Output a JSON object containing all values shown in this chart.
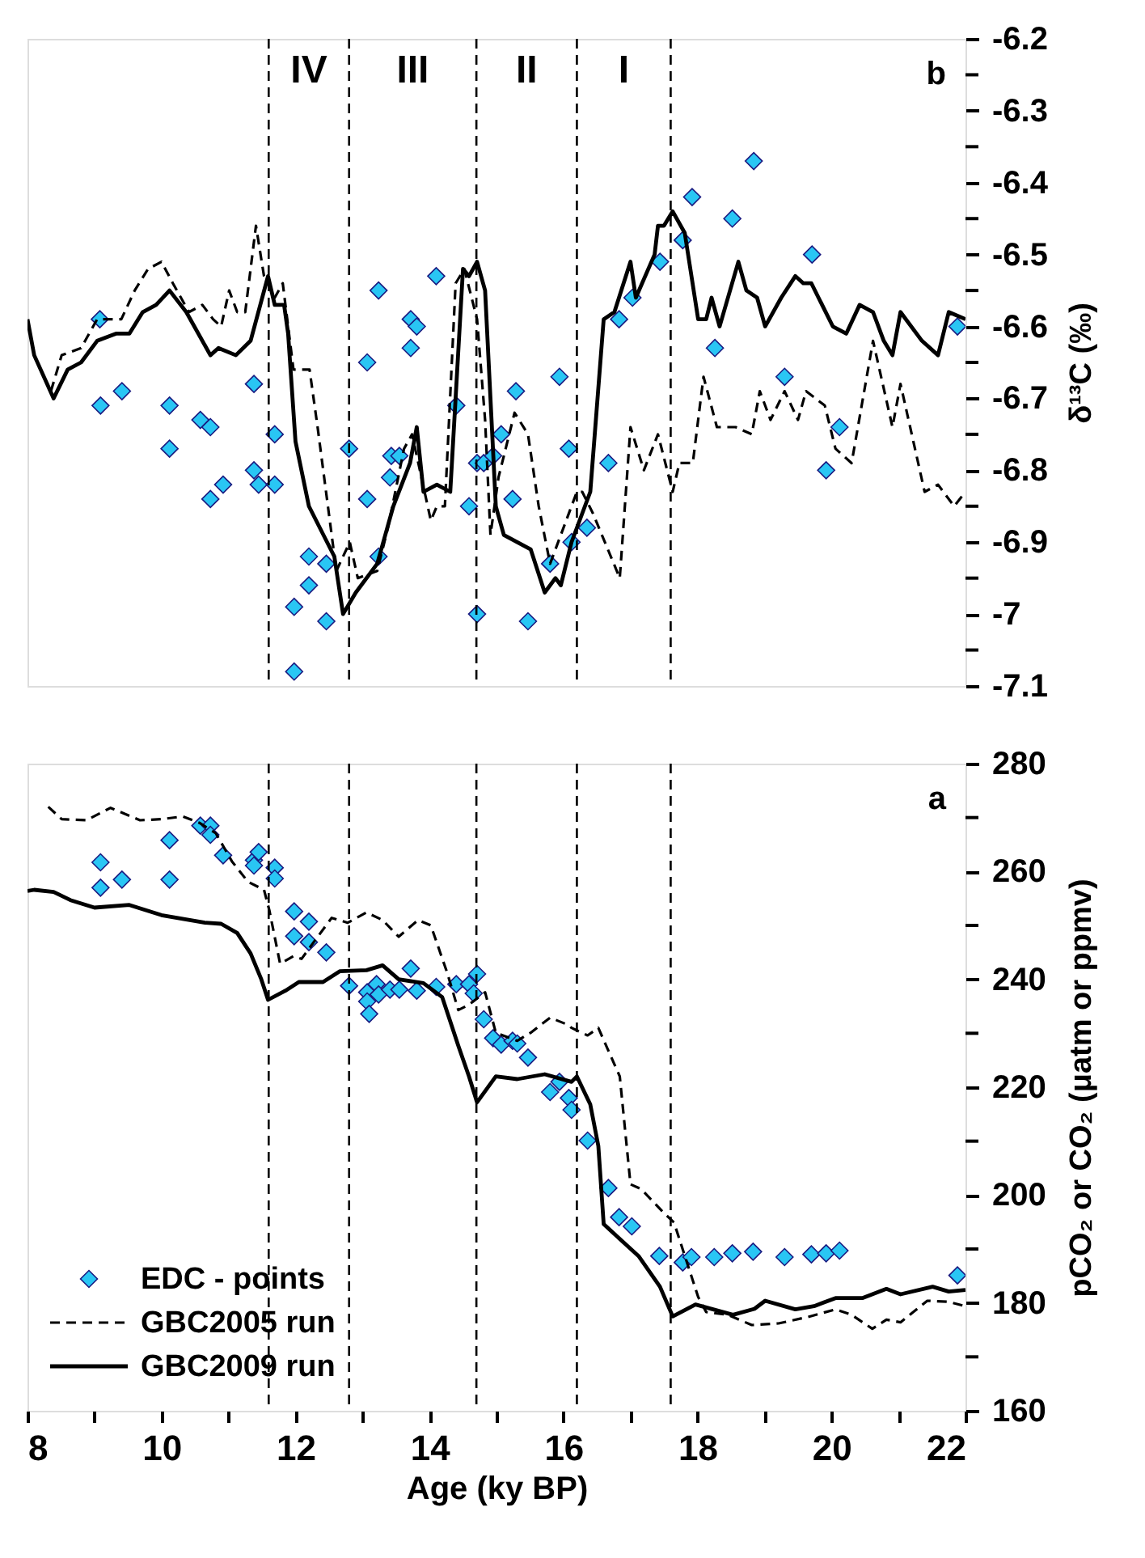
{
  "chart_data": [
    {
      "type": "line",
      "ylabel": "δ¹³C (‰)",
      "xlim": [
        8,
        22
      ],
      "ylim": [
        -7.1,
        -6.2
      ],
      "yticks": [
        -6.2,
        {
          "value": -6.25,
          "label": null
        },
        -6.3,
        {
          "value": -6.35,
          "label": null
        },
        -6.4,
        {
          "value": -6.45,
          "label": null
        },
        -6.5,
        {
          "value": -6.55,
          "label": null
        },
        -6.6,
        {
          "value": -6.65,
          "label": null
        },
        -6.7,
        {
          "value": -6.75,
          "label": null
        },
        -6.8,
        {
          "value": -6.85,
          "label": null
        },
        -6.9,
        {
          "value": -6.95,
          "label": null
        },
        -7,
        {
          "value": -7.05,
          "label": null
        },
        -7.1
      ],
      "tick_labels": "y",
      "grid": false,
      "legend": false,
      "annotations": [
        "b",
        "IV",
        "III",
        "II",
        "I"
      ],
      "ref_lines": [
        {
          "axis": "x",
          "value": 11.6,
          "color": "#000000",
          "line_style": "dashed"
        },
        {
          "axis": "x",
          "value": 12.8,
          "color": "#000000",
          "line_style": "dashed"
        },
        {
          "axis": "x",
          "value": 14.7,
          "color": "#000000",
          "line_style": "dashed"
        },
        {
          "axis": "x",
          "value": 16.2,
          "color": "#000000",
          "line_style": "dashed"
        },
        {
          "axis": "x",
          "value": 17.6,
          "color": "#000000",
          "line_style": "dashed"
        }
      ],
      "series": [
        {
          "type": "scatter",
          "marker": "diamond",
          "color": "#29c6f4",
          "x": [
            9.08,
            9.09,
            9.41,
            10.12,
            10.12,
            10.58,
            10.73,
            10.73,
            10.92,
            11.38,
            11.38,
            11.45,
            11.69,
            11.69,
            11.98,
            11.98,
            12.2,
            12.2,
            12.46,
            12.46,
            12.8,
            13.07,
            13.07,
            13.24,
            13.24,
            13.41,
            13.43,
            13.55,
            13.72,
            13.72,
            13.81,
            14.1,
            14.4,
            14.59,
            14.71,
            14.71,
            14.81,
            14.95,
            15.07,
            15.24,
            15.29,
            15.47,
            15.8,
            15.94,
            16.08,
            16.12,
            16.35,
            16.67,
            16.83,
            17.03,
            17.44,
            17.78,
            17.92,
            18.26,
            18.52,
            18.84,
            19.3,
            19.71,
            19.92,
            20.12,
            21.88
          ],
          "values": [
            -6.59,
            -6.71,
            -6.69,
            -6.71,
            -6.77,
            -6.73,
            -6.74,
            -6.84,
            -6.82,
            -6.68,
            -6.8,
            -6.82,
            -6.75,
            -6.82,
            -6.99,
            -7.08,
            -6.92,
            -6.96,
            -6.93,
            -7.01,
            -6.77,
            -6.65,
            -6.84,
            -6.55,
            -6.92,
            -6.81,
            -6.78,
            -6.78,
            -6.59,
            -6.63,
            -6.6,
            -6.53,
            -6.71,
            -6.85,
            -6.79,
            -7.0,
            -6.79,
            -6.78,
            -6.75,
            -6.84,
            -6.69,
            -7.01,
            -6.93,
            -6.67,
            -6.77,
            -6.9,
            -6.88,
            -6.79,
            -6.59,
            -6.56,
            -6.51,
            -6.48,
            -6.42,
            -6.63,
            -6.45,
            -6.37,
            -6.67,
            -6.5,
            -6.8,
            -6.74,
            -6.6
          ]
        },
        {
          "color": "#000000",
          "line_style": "dashed",
          "x": [
            8.35,
            8.51,
            8.8,
            9.04,
            9.4,
            9.6,
            9.8,
            10.0,
            10.17,
            10.41,
            10.61,
            10.77,
            10.89,
            11.01,
            11.13,
            11.25,
            11.41,
            11.53,
            11.69,
            11.81,
            11.97,
            12.21,
            12.33,
            12.61,
            12.81,
            12.93,
            13.22,
            13.38,
            13.62,
            13.74,
            14.02,
            14.11,
            14.23,
            14.39,
            14.52,
            14.71,
            14.83,
            14.91,
            15.03,
            15.27,
            15.47,
            15.63,
            15.8,
            16.2,
            16.28,
            16.44,
            16.84,
            17.0,
            17.2,
            17.41,
            17.63,
            17.73,
            17.93,
            18.09,
            18.29,
            18.57,
            18.81,
            18.93,
            19.09,
            19.3,
            19.5,
            19.62,
            19.9,
            20.06,
            20.3,
            20.62,
            20.91,
            21.03,
            21.39,
            21.59,
            21.83,
            22.0
          ],
          "values": [
            -6.69,
            -6.64,
            -6.63,
            -6.59,
            -6.59,
            -6.55,
            -6.52,
            -6.51,
            -6.54,
            -6.58,
            -6.57,
            -6.59,
            -6.6,
            -6.55,
            -6.58,
            -6.58,
            -6.46,
            -6.53,
            -6.56,
            -6.54,
            -6.66,
            -6.66,
            -6.74,
            -6.94,
            -6.9,
            -6.95,
            -6.94,
            -6.88,
            -6.77,
            -6.75,
            -6.87,
            -6.85,
            -6.85,
            -6.54,
            -6.52,
            -6.59,
            -6.73,
            -6.89,
            -6.81,
            -6.72,
            -6.75,
            -6.85,
            -6.93,
            -6.83,
            -6.83,
            -6.86,
            -6.95,
            -6.74,
            -6.8,
            -6.75,
            -6.83,
            -6.79,
            -6.79,
            -6.67,
            -6.74,
            -6.74,
            -6.75,
            -6.69,
            -6.73,
            -6.69,
            -6.73,
            -6.69,
            -6.71,
            -6.77,
            -6.79,
            -6.62,
            -6.74,
            -6.68,
            -6.83,
            -6.82,
            -6.85,
            -6.83
          ]
        },
        {
          "color": "#000000",
          "line_style": "solid",
          "x": [
            8.0,
            8.1,
            8.39,
            8.6,
            8.8,
            9.04,
            9.32,
            9.52,
            9.72,
            9.92,
            10.12,
            10.37,
            10.73,
            10.85,
            11.11,
            11.33,
            11.59,
            11.69,
            11.83,
            11.89,
            12.0,
            12.2,
            12.58,
            12.71,
            12.9,
            13.22,
            13.46,
            13.71,
            13.81,
            13.91,
            14.11,
            14.31,
            14.5,
            14.59,
            14.71,
            14.83,
            14.99,
            15.11,
            15.51,
            15.72,
            15.88,
            15.96,
            16.12,
            16.4,
            16.6,
            16.76,
            17.0,
            17.08,
            17.36,
            17.41,
            17.5,
            17.63,
            17.81,
            18.01,
            18.13,
            18.21,
            18.33,
            18.61,
            18.73,
            18.89,
            19.01,
            19.25,
            19.46,
            19.58,
            19.7,
            20.02,
            20.22,
            20.42,
            20.62,
            20.78,
            20.91,
            21.03,
            21.35,
            21.59,
            21.75,
            22.0
          ],
          "values": [
            -6.59,
            -6.64,
            -6.7,
            -6.66,
            -6.65,
            -6.62,
            -6.61,
            -6.61,
            -6.58,
            -6.57,
            -6.55,
            -6.58,
            -6.64,
            -6.63,
            -6.64,
            -6.62,
            -6.53,
            -6.57,
            -6.57,
            -6.61,
            -6.76,
            -6.85,
            -6.92,
            -7.0,
            -6.97,
            -6.93,
            -6.85,
            -6.79,
            -6.74,
            -6.83,
            -6.82,
            -6.83,
            -6.52,
            -6.53,
            -6.51,
            -6.55,
            -6.85,
            -6.89,
            -6.91,
            -6.97,
            -6.95,
            -6.96,
            -6.9,
            -6.83,
            -6.59,
            -6.58,
            -6.51,
            -6.56,
            -6.5,
            -6.46,
            -6.46,
            -6.44,
            -6.47,
            -6.59,
            -6.59,
            -6.56,
            -6.6,
            -6.51,
            -6.55,
            -6.56,
            -6.6,
            -6.56,
            -6.53,
            -6.54,
            -6.54,
            -6.6,
            -6.61,
            -6.57,
            -6.58,
            -6.62,
            -6.64,
            -6.58,
            -6.62,
            -6.64,
            -6.58,
            -6.59
          ]
        }
      ]
    },
    {
      "type": "line",
      "xlabel": "Age (ky BP)",
      "ylabel": "pCO₂ or CO₂ (μatm or ppmv)",
      "xlim": [
        8,
        22
      ],
      "ylim": [
        160,
        280
      ],
      "xticks": [
        8,
        {
          "value": 9,
          "label": null
        },
        10,
        {
          "value": 11,
          "label": null
        },
        12,
        {
          "value": 13,
          "label": null
        },
        14,
        {
          "value": 15,
          "label": null
        },
        16,
        {
          "value": 17,
          "label": null
        },
        18,
        {
          "value": 19,
          "label": null
        },
        20,
        {
          "value": 21,
          "label": null
        },
        22
      ],
      "yticks": [
        160,
        {
          "value": 170,
          "label": null
        },
        180,
        {
          "value": 190,
          "label": null
        },
        200,
        {
          "value": 210,
          "label": null
        },
        220,
        {
          "value": 230,
          "label": null
        },
        240,
        {
          "value": 250,
          "label": null
        },
        260,
        {
          "value": 270,
          "label": null
        },
        280
      ],
      "grid": false,
      "legend": "bottom left",
      "annotations": [
        "a"
      ],
      "ref_lines": [
        {
          "axis": "x",
          "value": 11.6,
          "color": "#000000",
          "line_style": "dashed"
        },
        {
          "axis": "x",
          "value": 12.8,
          "color": "#000000",
          "line_style": "dashed"
        },
        {
          "axis": "x",
          "value": 14.7,
          "color": "#000000",
          "line_style": "dashed"
        },
        {
          "axis": "x",
          "value": 16.2,
          "color": "#000000",
          "line_style": "dashed"
        },
        {
          "axis": "x",
          "value": 17.6,
          "color": "#000000",
          "line_style": "dashed"
        }
      ],
      "series": [
        {
          "type": "scatter",
          "marker": "diamond",
          "name": "EDC - points",
          "color": "#29c6f4",
          "x": [
            9.09,
            9.09,
            9.41,
            10.12,
            10.12,
            10.58,
            10.73,
            10.73,
            10.92,
            11.38,
            11.38,
            11.45,
            11.69,
            11.69,
            11.98,
            11.98,
            12.2,
            12.2,
            12.46,
            12.8,
            13.07,
            13.07,
            13.1,
            13.21,
            13.24,
            13.41,
            13.55,
            13.72,
            13.81,
            14.1,
            14.4,
            14.59,
            14.66,
            14.71,
            14.81,
            14.95,
            15.07,
            15.24,
            15.31,
            15.47,
            15.8,
            15.94,
            16.08,
            16.12,
            16.36,
            16.67,
            16.83,
            17.02,
            17.43,
            17.78,
            17.91,
            18.25,
            18.52,
            18.83,
            19.3,
            19.7,
            19.92,
            20.12,
            21.88
          ],
          "values": [
            261.7,
            257.0,
            258.5,
            265.8,
            258.5,
            268.5,
            268.5,
            266.8,
            263.0,
            262.1,
            261.1,
            263.6,
            260.7,
            258.7,
            252.6,
            248.0,
            250.7,
            246.9,
            245.0,
            238.8,
            237.6,
            235.9,
            233.6,
            239.1,
            237.2,
            238.1,
            238.1,
            242.0,
            237.9,
            238.6,
            239.1,
            239.1,
            237.4,
            241.0,
            232.6,
            229.1,
            227.9,
            228.6,
            228.1,
            225.5,
            219.1,
            221.0,
            218.0,
            215.8,
            210.1,
            201.3,
            195.9,
            194.2,
            188.7,
            187.5,
            188.5,
            188.5,
            189.2,
            189.5,
            188.5,
            189.0,
            189.2,
            189.7,
            185.1
          ]
        },
        {
          "name": "GBC2005 run",
          "color": "#000000",
          "line_style": "dashed",
          "x": [
            8.31,
            8.51,
            8.88,
            9.24,
            9.68,
            10.0,
            10.32,
            10.57,
            10.81,
            11.05,
            11.29,
            11.53,
            11.61,
            11.77,
            11.97,
            12.09,
            12.29,
            12.54,
            12.78,
            13.06,
            13.3,
            13.54,
            13.83,
            14.02,
            14.27,
            14.43,
            14.59,
            14.83,
            14.99,
            15.31,
            15.51,
            15.8,
            16.08,
            16.12,
            16.36,
            16.52,
            16.84,
            17.0,
            17.16,
            17.49,
            17.65,
            18.01,
            18.13,
            18.45,
            18.81,
            19.21,
            19.65,
            20.06,
            20.3,
            20.61,
            20.82,
            21.03,
            21.43,
            21.75,
            22.0
          ],
          "values": [
            272.0,
            269.7,
            269.5,
            271.8,
            269.5,
            269.7,
            270.2,
            269.0,
            267.1,
            261.9,
            258.1,
            256.6,
            252.8,
            242.9,
            244.3,
            243.8,
            247.2,
            251.4,
            250.5,
            252.4,
            251.0,
            247.9,
            251.0,
            250.0,
            241.0,
            234.3,
            235.3,
            237.6,
            230.1,
            228.6,
            230.1,
            232.9,
            231.5,
            231.0,
            229.6,
            231.0,
            222.0,
            202.0,
            201.1,
            196.8,
            194.9,
            181.1,
            178.3,
            177.8,
            175.9,
            176.2,
            177.4,
            178.8,
            177.8,
            175.2,
            176.9,
            176.4,
            180.4,
            180.2,
            179.4
          ]
        },
        {
          "name": "GBC2009 run",
          "color": "#000000",
          "line_style": "solid",
          "x": [
            8.0,
            8.1,
            8.39,
            8.64,
            9.0,
            9.52,
            10.0,
            10.65,
            10.89,
            11.13,
            11.33,
            11.49,
            11.59,
            11.85,
            12.05,
            12.41,
            12.66,
            13.06,
            13.3,
            13.54,
            13.91,
            14.19,
            14.43,
            14.59,
            14.71,
            14.99,
            15.31,
            15.72,
            16.12,
            16.2,
            16.4,
            16.52,
            16.6,
            17.12,
            17.44,
            17.63,
            17.97,
            18.53,
            18.85,
            19.01,
            19.46,
            19.74,
            20.06,
            20.46,
            20.82,
            21.03,
            21.51,
            21.75,
            22.0
          ],
          "values": [
            256.4,
            256.6,
            256.2,
            254.7,
            253.3,
            253.8,
            251.9,
            250.5,
            250.3,
            248.6,
            244.8,
            240.0,
            236.2,
            237.9,
            239.5,
            239.5,
            241.5,
            241.7,
            242.6,
            240.0,
            239.3,
            236.7,
            227.7,
            222.0,
            217.2,
            222.0,
            221.5,
            222.4,
            221.0,
            222.0,
            216.8,
            209.1,
            194.6,
            188.7,
            183.0,
            177.5,
            179.7,
            177.8,
            178.9,
            180.4,
            178.8,
            179.4,
            180.9,
            180.9,
            182.6,
            181.6,
            183.0,
            182.1,
            182.4
          ]
        }
      ]
    }
  ]
}
